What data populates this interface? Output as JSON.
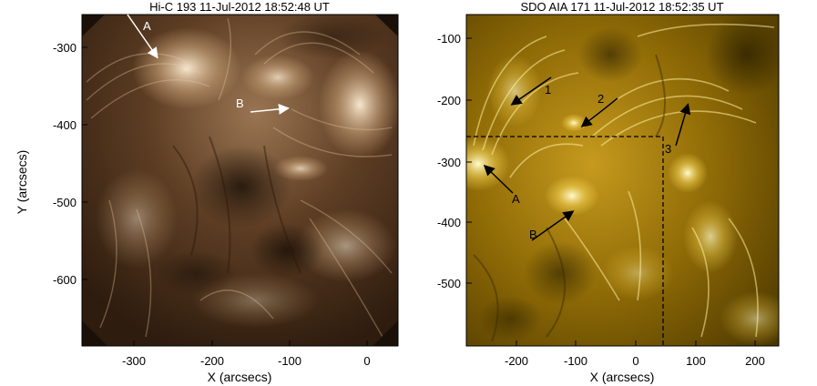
{
  "left_panel": {
    "title": "Hi-C 193 11-Jul-2012 18:52:48 UT",
    "xlabel": "X (arcsecs)",
    "ylabel": "Y (arcsecs)",
    "x_ticks": [
      "-300",
      "-200",
      "-100",
      "0"
    ],
    "y_ticks": [
      "-300",
      "-400",
      "-500",
      "-600"
    ],
    "annotations": [
      "A",
      "B"
    ],
    "colors": {
      "background": "#3a2514",
      "bright": "#f2e0c4",
      "mid": "#7a5535"
    }
  },
  "right_panel": {
    "title": "SDO AIA 171 11-Jul-2012 18:52:35 UT",
    "xlabel": "X (arcsecs)",
    "x_ticks": [
      "-200",
      "-100",
      "0",
      "100",
      "200"
    ],
    "y_ticks": [
      "-100",
      "-200",
      "-300",
      "-400",
      "-500"
    ],
    "annotations": [
      "1",
      "2",
      "3",
      "A",
      "B"
    ],
    "colors": {
      "background": "#5a4200",
      "bright": "#fff2a0",
      "mid": "#b68c10"
    }
  }
}
